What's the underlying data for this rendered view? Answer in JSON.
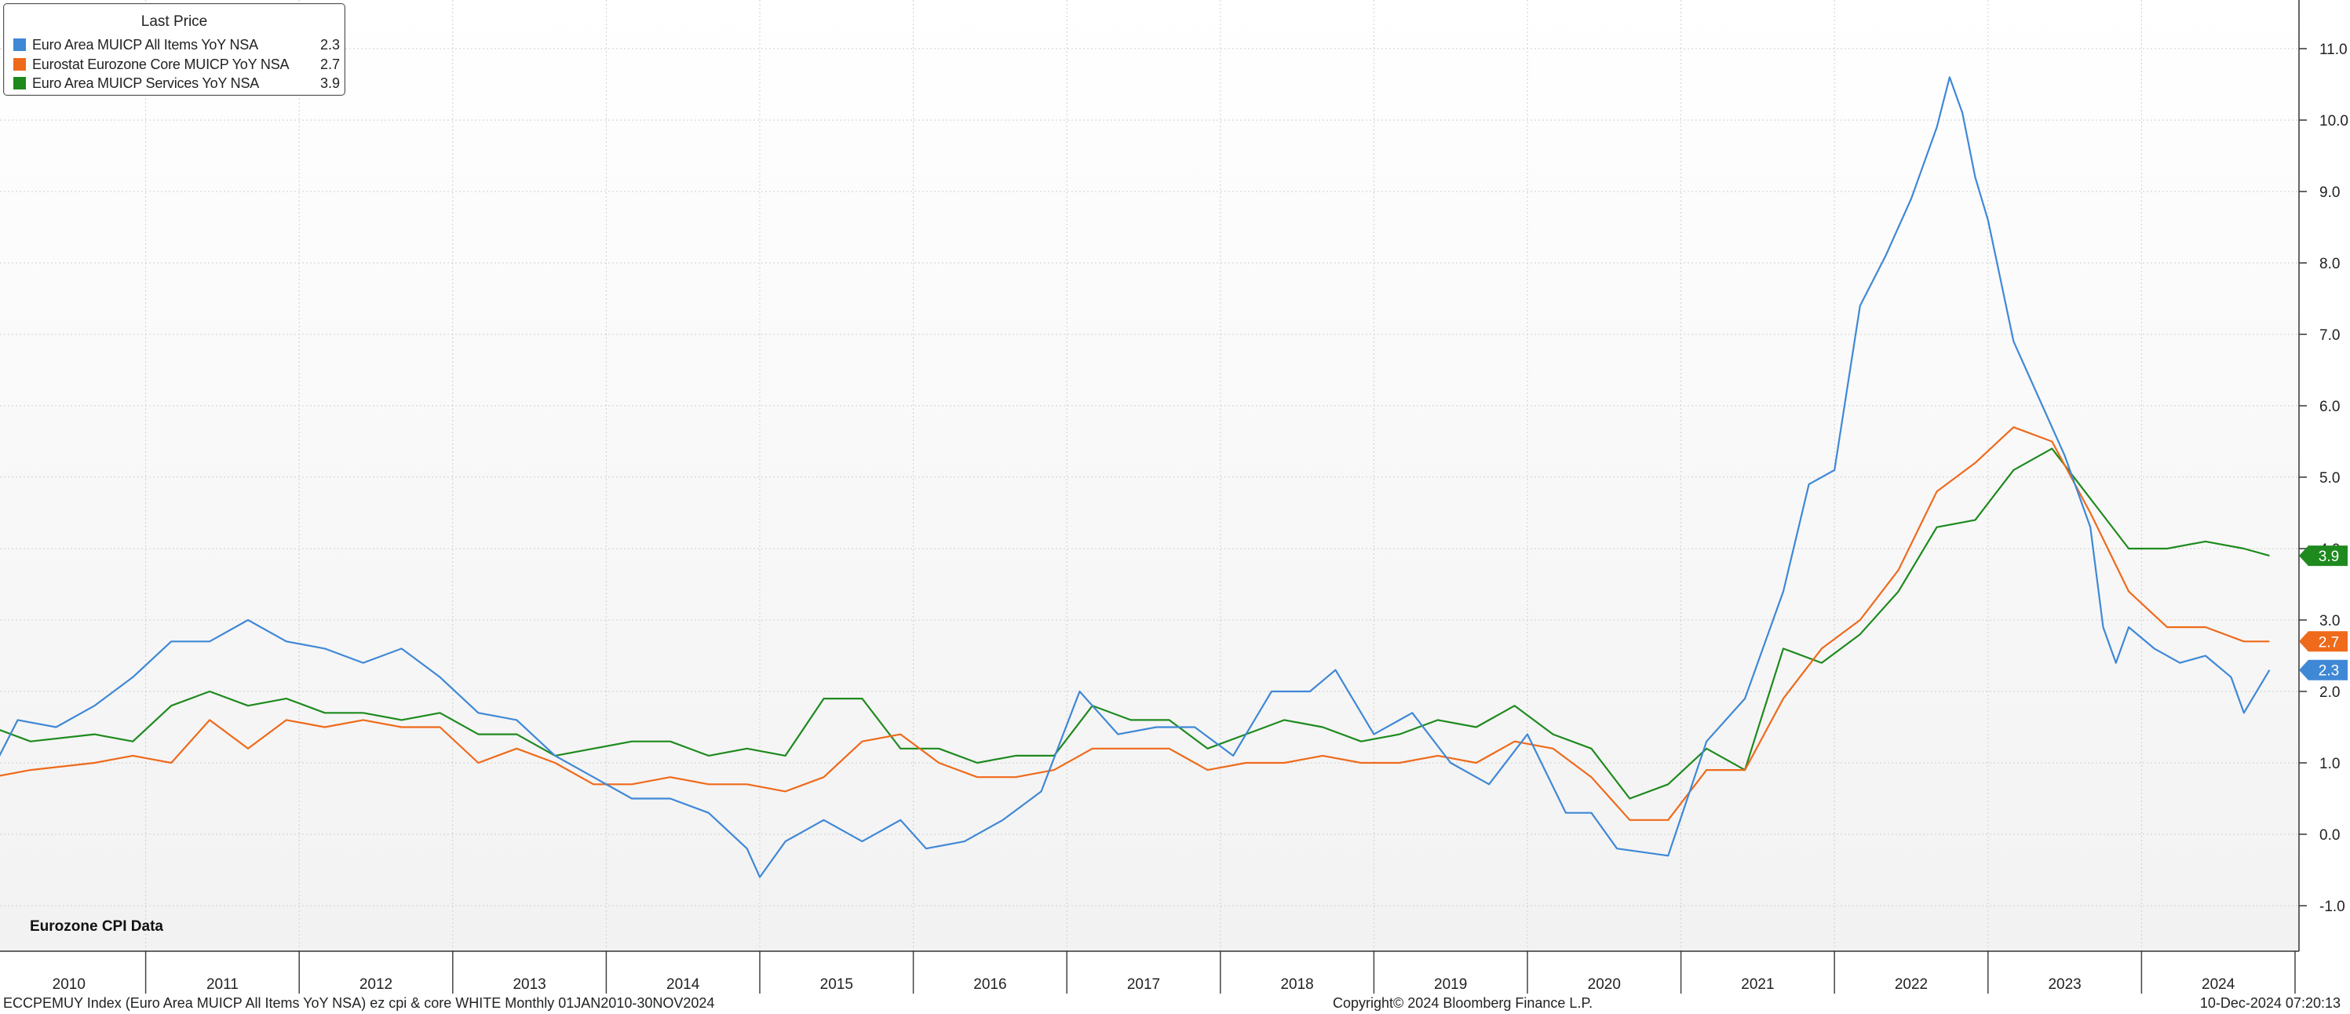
{
  "legend": {
    "title": "Last Price",
    "items": [
      {
        "name": "Euro Area MUICP All Items YoY NSA",
        "value": "2.3",
        "color": "#3f88d6"
      },
      {
        "name": "Eurostat Eurozone Core MUICP YoY NSA",
        "value": "2.7",
        "color": "#ef6a1b"
      },
      {
        "name": "Euro Area MUICP Services YoY NSA",
        "value": "3.9",
        "color": "#1e8a1e"
      }
    ]
  },
  "annotation": "Eurozone CPI Data",
  "footer": {
    "left": "ECCPEMUY Index (Euro Area MUICP All Items YoY NSA) ez cpi & core WHITE  Monthly 01JAN2010-30NOV2024",
    "center": "Copyright© 2024 Bloomberg Finance L.P.",
    "right": "10-Dec-2024 07:20:13"
  },
  "chart_data": {
    "type": "line",
    "ylim": [
      -1.5,
      11.5
    ],
    "yticks": [
      "-1.0",
      "0.0",
      "1.0",
      "2.0",
      "3.0",
      "4.0",
      "5.0",
      "6.0",
      "7.0",
      "8.0",
      "9.0",
      "10.0",
      "11.0"
    ],
    "x_tick_labels": [
      "2010",
      "2011",
      "2012",
      "2013",
      "2014",
      "2015",
      "2016",
      "2017",
      "2018",
      "2019",
      "2020",
      "2021",
      "2022",
      "2023",
      "2024"
    ],
    "grid": true,
    "series": [
      {
        "name": "Euro Area MUICP All Items YoY NSA",
        "color": "#3f88d6",
        "last_value": "2.3",
        "points": [
          [
            "2010-01",
            0.9
          ],
          [
            "2010-03",
            1.6
          ],
          [
            "2010-06",
            1.5
          ],
          [
            "2010-09",
            1.8
          ],
          [
            "2010-12",
            2.2
          ],
          [
            "2011-03",
            2.7
          ],
          [
            "2011-06",
            2.7
          ],
          [
            "2011-09",
            3.0
          ],
          [
            "2011-12",
            2.7
          ],
          [
            "2012-03",
            2.6
          ],
          [
            "2012-06",
            2.4
          ],
          [
            "2012-09",
            2.6
          ],
          [
            "2012-12",
            2.2
          ],
          [
            "2013-03",
            1.7
          ],
          [
            "2013-06",
            1.6
          ],
          [
            "2013-09",
            1.1
          ],
          [
            "2013-12",
            0.8
          ],
          [
            "2014-03",
            0.5
          ],
          [
            "2014-06",
            0.5
          ],
          [
            "2014-09",
            0.3
          ],
          [
            "2014-12",
            -0.2
          ],
          [
            "2015-01",
            -0.6
          ],
          [
            "2015-03",
            -0.1
          ],
          [
            "2015-06",
            0.2
          ],
          [
            "2015-09",
            -0.1
          ],
          [
            "2015-12",
            0.2
          ],
          [
            "2016-02",
            -0.2
          ],
          [
            "2016-05",
            -0.1
          ],
          [
            "2016-08",
            0.2
          ],
          [
            "2016-11",
            0.6
          ],
          [
            "2017-02",
            2.0
          ],
          [
            "2017-05",
            1.4
          ],
          [
            "2017-08",
            1.5
          ],
          [
            "2017-11",
            1.5
          ],
          [
            "2018-02",
            1.1
          ],
          [
            "2018-05",
            2.0
          ],
          [
            "2018-08",
            2.0
          ],
          [
            "2018-10",
            2.3
          ],
          [
            "2019-01",
            1.4
          ],
          [
            "2019-04",
            1.7
          ],
          [
            "2019-07",
            1.0
          ],
          [
            "2019-10",
            0.7
          ],
          [
            "2020-01",
            1.4
          ],
          [
            "2020-04",
            0.3
          ],
          [
            "2020-06",
            0.3
          ],
          [
            "2020-08",
            -0.2
          ],
          [
            "2020-12",
            -0.3
          ],
          [
            "2021-03",
            1.3
          ],
          [
            "2021-06",
            1.9
          ],
          [
            "2021-09",
            3.4
          ],
          [
            "2021-11",
            4.9
          ],
          [
            "2021-12",
            5.0
          ],
          [
            "2022-01",
            5.1
          ],
          [
            "2022-03",
            7.4
          ],
          [
            "2022-05",
            8.1
          ],
          [
            "2022-07",
            8.9
          ],
          [
            "2022-09",
            9.9
          ],
          [
            "2022-10",
            10.6
          ],
          [
            "2022-11",
            10.1
          ],
          [
            "2022-12",
            9.2
          ],
          [
            "2023-01",
            8.6
          ],
          [
            "2023-03",
            6.9
          ],
          [
            "2023-05",
            6.1
          ],
          [
            "2023-07",
            5.3
          ],
          [
            "2023-09",
            4.3
          ],
          [
            "2023-10",
            2.9
          ],
          [
            "2023-11",
            2.4
          ],
          [
            "2023-12",
            2.9
          ],
          [
            "2024-02",
            2.6
          ],
          [
            "2024-04",
            2.4
          ],
          [
            "2024-06",
            2.5
          ],
          [
            "2024-08",
            2.2
          ],
          [
            "2024-09",
            1.7
          ],
          [
            "2024-11",
            2.3
          ]
        ]
      },
      {
        "name": "Eurostat Eurozone Core MUICP YoY NSA",
        "color": "#ef6a1b",
        "last_value": "2.7",
        "points": [
          [
            "2010-01",
            0.8
          ],
          [
            "2010-04",
            0.9
          ],
          [
            "2010-09",
            1.0
          ],
          [
            "2010-12",
            1.1
          ],
          [
            "2011-03",
            1.0
          ],
          [
            "2011-06",
            1.6
          ],
          [
            "2011-09",
            1.2
          ],
          [
            "2011-12",
            1.6
          ],
          [
            "2012-03",
            1.5
          ],
          [
            "2012-06",
            1.6
          ],
          [
            "2012-09",
            1.5
          ],
          [
            "2012-12",
            1.5
          ],
          [
            "2013-03",
            1.0
          ],
          [
            "2013-06",
            1.2
          ],
          [
            "2013-09",
            1.0
          ],
          [
            "2013-12",
            0.7
          ],
          [
            "2014-03",
            0.7
          ],
          [
            "2014-06",
            0.8
          ],
          [
            "2014-09",
            0.7
          ],
          [
            "2014-12",
            0.7
          ],
          [
            "2015-03",
            0.6
          ],
          [
            "2015-06",
            0.8
          ],
          [
            "2015-09",
            1.3
          ],
          [
            "2015-12",
            1.4
          ],
          [
            "2016-03",
            1.0
          ],
          [
            "2016-06",
            0.8
          ],
          [
            "2016-09",
            0.8
          ],
          [
            "2016-12",
            0.9
          ],
          [
            "2017-03",
            1.2
          ],
          [
            "2017-06",
            1.2
          ],
          [
            "2017-09",
            1.2
          ],
          [
            "2017-12",
            0.9
          ],
          [
            "2018-03",
            1.0
          ],
          [
            "2018-06",
            1.0
          ],
          [
            "2018-09",
            1.1
          ],
          [
            "2018-12",
            1.0
          ],
          [
            "2019-03",
            1.0
          ],
          [
            "2019-06",
            1.1
          ],
          [
            "2019-09",
            1.0
          ],
          [
            "2019-12",
            1.3
          ],
          [
            "2020-03",
            1.2
          ],
          [
            "2020-06",
            0.8
          ],
          [
            "2020-09",
            0.2
          ],
          [
            "2020-12",
            0.2
          ],
          [
            "2021-03",
            0.9
          ],
          [
            "2021-06",
            0.9
          ],
          [
            "2021-09",
            1.9
          ],
          [
            "2021-12",
            2.6
          ],
          [
            "2022-03",
            3.0
          ],
          [
            "2022-06",
            3.7
          ],
          [
            "2022-09",
            4.8
          ],
          [
            "2022-12",
            5.2
          ],
          [
            "2023-03",
            5.7
          ],
          [
            "2023-06",
            5.5
          ],
          [
            "2023-09",
            4.5
          ],
          [
            "2023-12",
            3.4
          ],
          [
            "2024-03",
            2.9
          ],
          [
            "2024-06",
            2.9
          ],
          [
            "2024-09",
            2.7
          ],
          [
            "2024-11",
            2.7
          ]
        ]
      },
      {
        "name": "Euro Area MUICP Services YoY NSA",
        "color": "#1e8a1e",
        "last_value": "3.9",
        "points": [
          [
            "2010-01",
            1.5
          ],
          [
            "2010-04",
            1.3
          ],
          [
            "2010-09",
            1.4
          ],
          [
            "2010-12",
            1.3
          ],
          [
            "2011-03",
            1.8
          ],
          [
            "2011-06",
            2.0
          ],
          [
            "2011-09",
            1.8
          ],
          [
            "2011-12",
            1.9
          ],
          [
            "2012-03",
            1.7
          ],
          [
            "2012-06",
            1.7
          ],
          [
            "2012-09",
            1.6
          ],
          [
            "2012-12",
            1.7
          ],
          [
            "2013-03",
            1.4
          ],
          [
            "2013-06",
            1.4
          ],
          [
            "2013-09",
            1.1
          ],
          [
            "2013-12",
            1.2
          ],
          [
            "2014-03",
            1.3
          ],
          [
            "2014-06",
            1.3
          ],
          [
            "2014-09",
            1.1
          ],
          [
            "2014-12",
            1.2
          ],
          [
            "2015-03",
            1.1
          ],
          [
            "2015-06",
            1.9
          ],
          [
            "2015-09",
            1.9
          ],
          [
            "2015-12",
            1.2
          ],
          [
            "2016-03",
            1.2
          ],
          [
            "2016-06",
            1.0
          ],
          [
            "2016-09",
            1.1
          ],
          [
            "2016-12",
            1.1
          ],
          [
            "2017-03",
            1.8
          ],
          [
            "2017-06",
            1.6
          ],
          [
            "2017-09",
            1.6
          ],
          [
            "2017-12",
            1.2
          ],
          [
            "2018-03",
            1.4
          ],
          [
            "2018-06",
            1.6
          ],
          [
            "2018-09",
            1.5
          ],
          [
            "2018-12",
            1.3
          ],
          [
            "2019-03",
            1.4
          ],
          [
            "2019-06",
            1.6
          ],
          [
            "2019-09",
            1.5
          ],
          [
            "2019-12",
            1.8
          ],
          [
            "2020-03",
            1.4
          ],
          [
            "2020-06",
            1.2
          ],
          [
            "2020-09",
            0.5
          ],
          [
            "2020-12",
            0.7
          ],
          [
            "2021-03",
            1.2
          ],
          [
            "2021-06",
            0.9
          ],
          [
            "2021-09",
            2.6
          ],
          [
            "2021-12",
            2.4
          ],
          [
            "2022-03",
            2.8
          ],
          [
            "2022-06",
            3.4
          ],
          [
            "2022-09",
            4.3
          ],
          [
            "2022-12",
            4.4
          ],
          [
            "2023-03",
            5.1
          ],
          [
            "2023-06",
            5.4
          ],
          [
            "2023-09",
            4.7
          ],
          [
            "2023-12",
            4.0
          ],
          [
            "2024-03",
            4.0
          ],
          [
            "2024-06",
            4.1
          ],
          [
            "2024-09",
            4.0
          ],
          [
            "2024-11",
            3.9
          ]
        ]
      }
    ]
  }
}
